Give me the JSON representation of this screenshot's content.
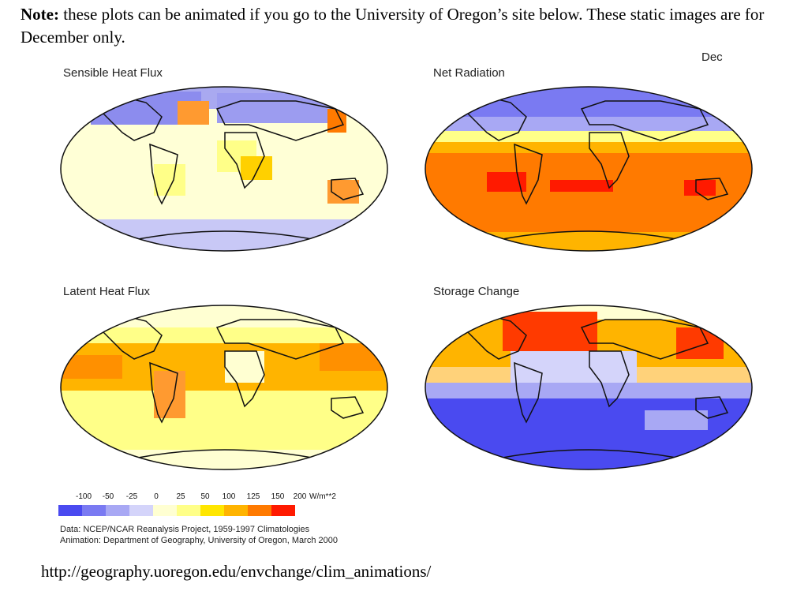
{
  "note": {
    "label": "Note:",
    "text": "these plots can be animated if you go to the University of Oregon’s site below. These static images are for December only."
  },
  "month": "Dec",
  "maps": [
    {
      "title": "Sensible Heat Flux"
    },
    {
      "title": "Net Radiation"
    },
    {
      "title": "Latent Heat Flux"
    },
    {
      "title": "Storage Change"
    }
  ],
  "legend": {
    "ticks": [
      "-100",
      "-50",
      "-25",
      "0",
      "25",
      "50",
      "100",
      "125",
      "150",
      "200"
    ],
    "unit": "W/m**2",
    "colors": [
      "#4a4af0",
      "#7a7af2",
      "#a8a8f4",
      "#d4d4fa",
      "#ffffd2",
      "#ffff88",
      "#ffe600",
      "#ffb400",
      "#ff7a00",
      "#ff1a00"
    ]
  },
  "credits": {
    "data": "Data:  NCEP/NCAR Reanalysis Project, 1959-1997 Climatologies",
    "animation": "Animation:  Department of Geography, University of Oregon, March 2000"
  },
  "link": "http://geography.uoregon.edu/envchange/clim_animations/"
}
